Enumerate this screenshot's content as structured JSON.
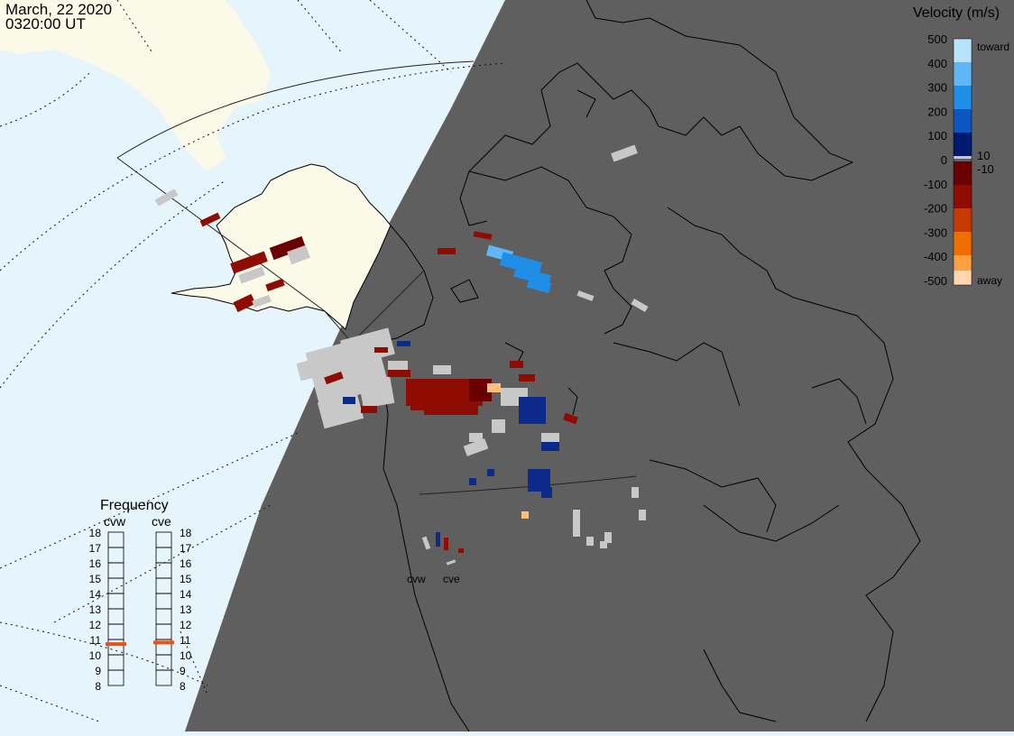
{
  "header": {
    "date": "March, 22 2020",
    "time": "0320:00 UT"
  },
  "velocity_scale": {
    "title": "Velocity (m/s)",
    "ticks": [
      "500",
      "400",
      "300",
      "200",
      "100",
      "0",
      "-100",
      "-200",
      "-300",
      "-400",
      "-500"
    ],
    "inner_labels": [
      "10",
      "-10"
    ],
    "end_labels": {
      "top": "toward",
      "bottom": "away"
    },
    "colors": {
      "toward": [
        "#e8f6ff",
        "#a9dcff",
        "#5fb8f5",
        "#1f8ee8",
        "#0a5fc7",
        "#0b3a9a",
        "#001a70"
      ],
      "away": [
        "#5a0000",
        "#8b0000",
        "#a11a06",
        "#c63a00",
        "#e05a00",
        "#ff8a1a",
        "#ffc07a",
        "#ffe0c2"
      ],
      "ground_scatter": "#c8c8c8"
    }
  },
  "frequency_panel": {
    "title": "Frequency",
    "radars": [
      "cvw",
      "cve"
    ],
    "levels": [
      "18",
      "17",
      "16",
      "15",
      "14",
      "13",
      "12",
      "11",
      "10",
      "9",
      "8"
    ],
    "selected_mhz": {
      "cvw": 10.7,
      "cve": 10.8
    },
    "marker_color": "#e8531a"
  },
  "map": {
    "radar_labels": [
      "cvw",
      "cve"
    ],
    "night_color": "#5f5f5f",
    "day_ocean_color": "#e6f4fb",
    "land_day_color": "#fbfae8"
  }
}
